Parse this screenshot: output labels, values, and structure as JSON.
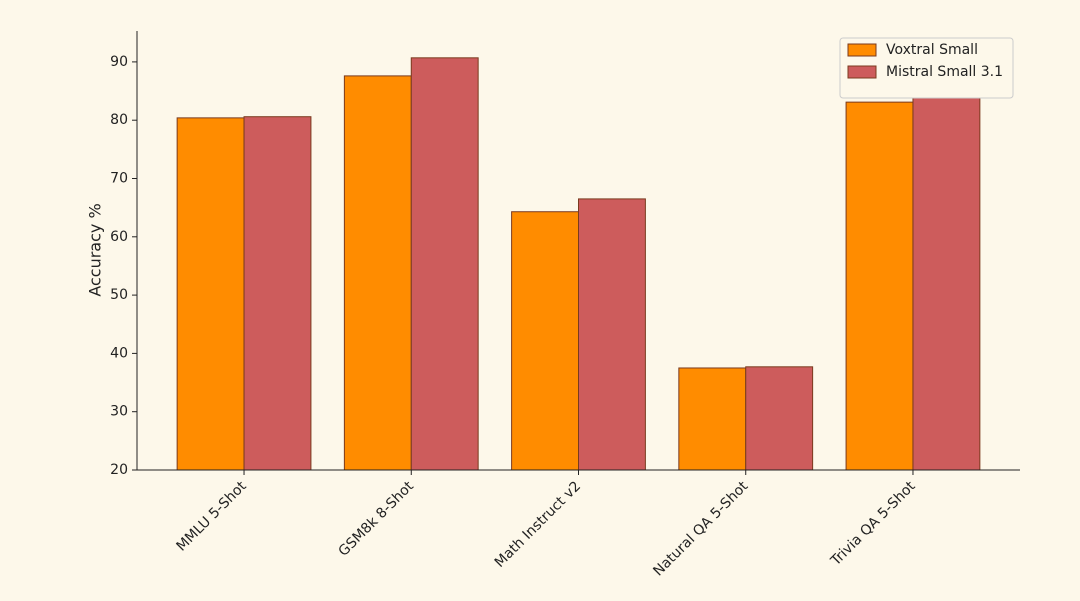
{
  "chart_data": {
    "type": "bar",
    "ylabel": "Accuracy %",
    "categories": [
      "MMLU 5-Shot",
      "GSM8k 8-Shot",
      "Math Instruct v2",
      "Natural QA 5-Shot",
      "Trivia QA 5-Shot"
    ],
    "series": [
      {
        "name": "Voxtral Small",
        "color": "#ff8c00",
        "values": [
          80.4,
          87.6,
          64.3,
          37.5,
          83.1
        ]
      },
      {
        "name": "Mistral Small 3.1",
        "color": "#cd5c5c",
        "values": [
          80.6,
          90.7,
          66.5,
          37.7,
          84.0
        ]
      }
    ],
    "ylim": [
      20,
      95.3
    ],
    "yticks": [
      20,
      30,
      40,
      50,
      60,
      70,
      80,
      90
    ],
    "legend": "upper-right"
  }
}
